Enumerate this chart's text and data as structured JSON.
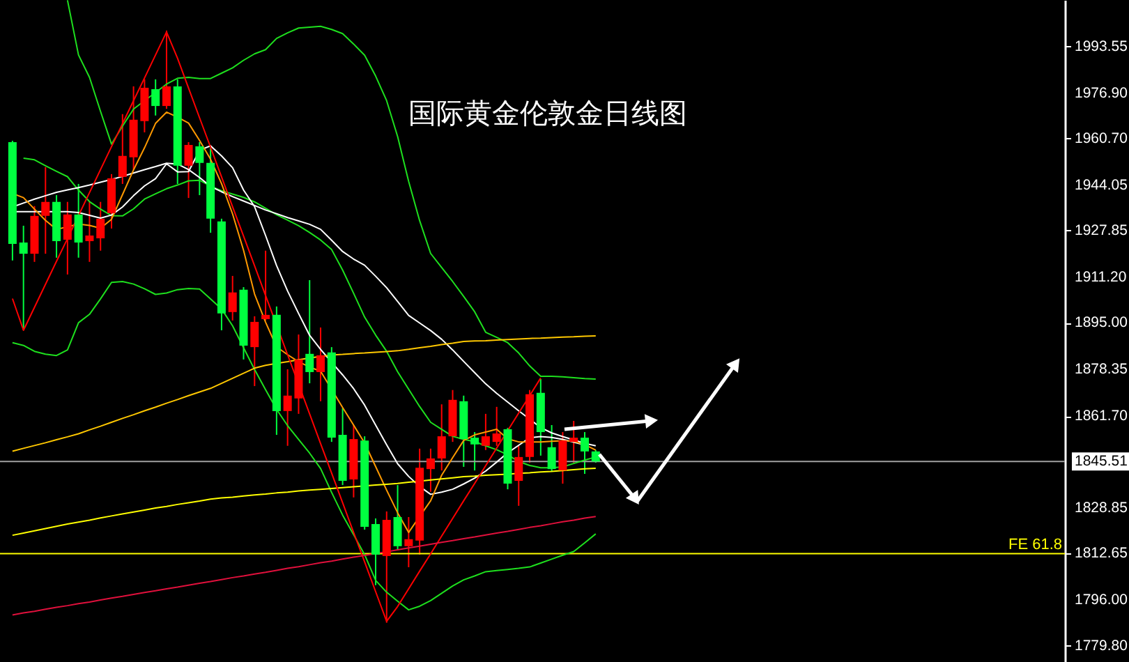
{
  "chart_data": {
    "type": "candlestick",
    "title": "国际黄金伦敦金日线图",
    "categories": [
      null,
      null,
      null,
      null,
      null,
      null,
      null,
      null,
      null,
      null,
      null,
      null,
      null,
      null,
      null,
      null,
      null,
      null,
      null,
      null,
      null,
      null,
      null,
      null,
      null,
      null,
      null,
      null,
      null,
      null,
      null,
      null,
      null,
      null,
      null,
      null,
      null,
      null,
      null,
      null,
      null,
      null,
      null,
      null,
      null,
      null,
      null,
      null,
      null,
      null,
      null,
      null,
      null,
      null
    ],
    "ohlc": [
      [
        1959.4,
        1959.9,
        1917.2,
        1923.1
      ],
      [
        1923.6,
        1929.6,
        1892.3,
        1919.6
      ],
      [
        1919.6,
        1936.6,
        1916.7,
        1933.1
      ],
      [
        1933.1,
        1950.5,
        1919.6,
        1938.1
      ],
      [
        1938.1,
        1940.5,
        1918.2,
        1924.1
      ],
      [
        1924.6,
        1938.1,
        1912.2,
        1933.6
      ],
      [
        1933.6,
        1944.5,
        1918.2,
        1923.6
      ],
      [
        1924.1,
        1938.1,
        1916.7,
        1926.1
      ],
      [
        1925.1,
        1938.1,
        1920.7,
        1932.1
      ],
      [
        1934.1,
        1948.0,
        1928.6,
        1946.5
      ],
      [
        1947.0,
        1969.4,
        1944.5,
        1954.5
      ],
      [
        1954.0,
        1979.3,
        1949.5,
        1967.4
      ],
      [
        1966.9,
        1981.8,
        1962.9,
        1978.8
      ],
      [
        1978.3,
        1981.8,
        1968.9,
        1972.3
      ],
      [
        1972.3,
        1999.2,
        1971.3,
        1979.3
      ],
      [
        1979.3,
        1981.8,
        1944.5,
        1951.0
      ],
      [
        1951.0,
        1959.4,
        1939.5,
        1958.4
      ],
      [
        1957.9,
        1959.4,
        1940.5,
        1952.0
      ],
      [
        1952.0,
        1957.4,
        1927.1,
        1932.1
      ],
      [
        1931.1,
        1932.1,
        1892.3,
        1898.3
      ],
      [
        1898.8,
        1911.7,
        1895.8,
        1905.8
      ],
      [
        1906.8,
        1907.7,
        1881.9,
        1886.8
      ],
      [
        1886.3,
        1897.3,
        1872.4,
        1895.3
      ],
      [
        1896.3,
        1920.7,
        1895.8,
        1897.8
      ],
      [
        1897.8,
        1900.8,
        1855.0,
        1863.5
      ],
      [
        1863.5,
        1878.4,
        1851.1,
        1869.0
      ],
      [
        1868.0,
        1890.8,
        1862.5,
        1881.9
      ],
      [
        1883.9,
        1910.2,
        1873.4,
        1877.4
      ],
      [
        1877.4,
        1893.3,
        1867.0,
        1883.4
      ],
      [
        1884.4,
        1886.3,
        1852.5,
        1854.0
      ],
      [
        1855.0,
        1864.5,
        1837.1,
        1838.6
      ],
      [
        1839.1,
        1858.5,
        1832.7,
        1853.5
      ],
      [
        1853.0,
        1854.5,
        1821.2,
        1822.2
      ],
      [
        1823.2,
        1825.2,
        1801.4,
        1812.3
      ],
      [
        1811.8,
        1827.7,
        1788.0,
        1824.7
      ],
      [
        1825.7,
        1837.1,
        1813.8,
        1815.3
      ],
      [
        1815.3,
        1825.7,
        1807.8,
        1817.8
      ],
      [
        1817.3,
        1850.1,
        1812.3,
        1843.3
      ],
      [
        1842.8,
        1850.1,
        1834.7,
        1846.6
      ],
      [
        1846.6,
        1865.9,
        1842.3,
        1854.5
      ],
      [
        1854.5,
        1871.0,
        1852.5,
        1867.5
      ],
      [
        1867.0,
        1869.0,
        1843.6,
        1853.5
      ],
      [
        1854.0,
        1856.0,
        1842.3,
        1851.6
      ],
      [
        1851.1,
        1862.5,
        1849.6,
        1854.5
      ],
      [
        1852.5,
        1865.0,
        1851.1,
        1855.5
      ],
      [
        1857.0,
        1857.5,
        1835.6,
        1837.6
      ],
      [
        1838.6,
        1851.1,
        1829.7,
        1847.1
      ],
      [
        1847.1,
        1871.0,
        1845.1,
        1869.5
      ],
      [
        1870.0,
        1874.9,
        1847.6,
        1856.0
      ],
      [
        1850.6,
        1858.5,
        1842.1,
        1842.8
      ],
      [
        1842.3,
        1856.0,
        1837.6,
        1853.0
      ],
      [
        1852.5,
        1860.0,
        1845.1,
        1854.0
      ],
      [
        1854.0,
        1856.0,
        1841.1,
        1849.1
      ],
      [
        1849.1,
        1849.6,
        1845.1,
        1845.5
      ]
    ],
    "colors": [
      "#00ff40",
      "#00ff40",
      "#ff0000",
      "#ff0000",
      "#00ff40",
      "#ff0000",
      "#00ff40",
      "#ff0000",
      "#ff0000",
      "#ff0000",
      "#ff0000",
      "#ff0000",
      "#ff0000",
      "#00ff40",
      "#ff0000",
      "#00ff40",
      "#ff0000",
      "#00ff40",
      "#00ff40",
      "#00ff40",
      "#ff0000",
      "#00ff40",
      "#ff0000",
      "#ff0000",
      "#00ff40",
      "#ff0000",
      "#ff0000",
      "#00ff40",
      "#ff0000",
      "#00ff40",
      "#00ff40",
      "#ff0000",
      "#00ff40",
      "#00ff40",
      "#ff0000",
      "#00ff40",
      "#ff0000",
      "#ff0000",
      "#ff0000",
      "#ff0000",
      "#ff0000",
      "#00ff40",
      "#00ff40",
      "#ff0000",
      "#ff0000",
      "#00ff40",
      "#ff0000",
      "#ff0000",
      "#00ff40",
      "#00ff40",
      "#ff0000",
      "#ff0000",
      "#00ff40",
      "#00ff40"
    ],
    "series": [
      {
        "type": "line",
        "color": "#1ee01e",
        "values": [
          null,
          null,
          null,
          null,
          null,
          2010.0,
          1990.5,
          1982.5,
          1970.4,
          1958.7,
          1965.1,
          1971.2,
          1974.2,
          1977.1,
          1980.1,
          1982.2,
          1982.5,
          1982.1,
          1982.1,
          1984.0,
          1985.9,
          1988.6,
          1990.9,
          1992.4,
          1996.4,
          1998.4,
          2000.1,
          2000.4,
          2000.7,
          1999.6,
          1998.1,
          1994.4,
          1990.4,
          1983.0,
          1974.2,
          1961.4,
          1945.4,
          1931.4,
          1919.7,
          1914.7,
          1909.7,
          1904.4,
          1898.9,
          1891.6,
          1889.8,
          1887.9,
          1884.2,
          1879.6,
          1875.9,
          1875.9,
          1875.7,
          1875.4,
          1875.1,
          1874.9
        ]
      },
      {
        "type": "line",
        "color": "#1ee01e",
        "values": [
          null,
          1953.7,
          1953.1,
          1951.0,
          1949.0,
          1947.1,
          1942.3,
          1938.2,
          1935.5,
          1933.2,
          1933.1,
          1935.6,
          1939.1,
          1941.0,
          1942.8,
          1944.1,
          1945.6,
          1945.8,
          1943.7,
          1942.1,
          1940.9,
          1939.7,
          1938.1,
          1935.8,
          1933.5,
          1931.6,
          1929.6,
          1927.2,
          1924.5,
          1921.1,
          1913.8,
          1905.5,
          1897.0,
          1890.6,
          1884.8,
          1877.5,
          1871.3,
          1865.1,
          1859.5,
          1857.0,
          1854.5,
          1853.4,
          1852.6,
          1851.1,
          1849.7,
          1847.9,
          1845.5,
          1844.1,
          1843.3,
          1843.3,
          1843.6,
          1844.8,
          1846.0,
          1847.1
        ]
      },
      {
        "type": "line",
        "color": "#1ee01e",
        "values": [
          1887.9,
          1886.9,
          1884.8,
          1883.8,
          1883.3,
          1885.3,
          1895.0,
          1898.0,
          1903.5,
          1909.4,
          1909.7,
          1908.8,
          1907.1,
          1905.1,
          1905.6,
          1906.8,
          1907.2,
          1907.0,
          1903.5,
          1899.9,
          1893.9,
          1886.1,
          1878.3,
          1871.1,
          1864.1,
          1858.3,
          1853.4,
          1848.5,
          1843.0,
          1834.5,
          1826.4,
          1819.4,
          1812.3,
          1803.1,
          1798.9,
          1795.7,
          1792.6,
          1793.9,
          1795.9,
          1798.5,
          1801.1,
          1803.3,
          1804.7,
          1806.2,
          1806.6,
          1807.0,
          1807.4,
          1807.9,
          1809.3,
          1810.7,
          1812.1,
          1813.4,
          1816.5,
          1819.7
        ]
      },
      {
        "type": "line",
        "color": "#ffffff",
        "values": [
          1936.3,
          1937.7,
          1939.1,
          1940.3,
          1941.5,
          1942.4,
          1943.2,
          1944.1,
          1945.1,
          1946.1,
          1947.2,
          1948.4,
          1949.6,
          1950.7,
          1951.9,
          1951.6,
          1949.6,
          1946.8,
          1943.6,
          1941.7,
          1940.0,
          1938.4,
          1936.8,
          1935.2,
          1933.9,
          1932.5,
          1931.3,
          1930.1,
          1928.3,
          1924.4,
          1920.4,
          1917.7,
          1915.5,
          1911.6,
          1907.5,
          1902.6,
          1897.6,
          1894.9,
          1892.2,
          1889.1,
          1885.3,
          1881.2,
          1877.2,
          1873.2,
          1869.8,
          1866.7,
          1863.6,
          1860.6,
          1857.6,
          1855.7,
          1854.4,
          1853.2,
          1852.0,
          1851.1
        ]
      },
      {
        "type": "line",
        "color": "#ffffff",
        "values": [
          1934.6,
          1934.6,
          1934.6,
          1934.6,
          1934.6,
          1934.6,
          1934.3,
          1933.3,
          1932.3,
          1933.4,
          1936.3,
          1940.3,
          1943.8,
          1946.4,
          1951.7,
          1948.8,
          1948.9,
          1956.5,
          1958.1,
          1954.5,
          1950.3,
          1942.3,
          1936.4,
          1926.1,
          1915.4,
          1906.3,
          1898.3,
          1890.5,
          1885.5,
          1880.9,
          1876.4,
          1871.5,
          1865.6,
          1858.5,
          1851.5,
          1844.7,
          1840.2,
          1836.6,
          1833.8,
          1834.6,
          1835.6,
          1837.5,
          1839.6,
          1842.1,
          1845.3,
          1848.6,
          1851.3,
          1854.0,
          1854.4,
          1854.1,
          1853.4,
          1852.4,
          1851.4,
          null
        ]
      },
      {
        "type": "line",
        "color": "#ff9900",
        "values": [
          1941.1,
          1939.6,
          1935.5,
          1931.5,
          1928.3,
          1929.2,
          1930.2,
          1929.7,
          1928.7,
          1931.9,
          1940.7,
          1949.5,
          1957.4,
          1966.1,
          1970.1,
          1968.3,
          1966.2,
          1960.0,
          1953.3,
          1944.6,
          1933.8,
          1920.8,
          1905.2,
          1895.2,
          1886.4,
          1883.6,
          1881.1,
          1879.2,
          1877.7,
          null,
          1864.8,
          1858.5,
          1852.1,
          1843.7,
          1835.3,
          1827.2,
          1820.2,
          1825.9,
          1831.5,
          1840.6,
          1846.9,
          1853.0,
          1855.0,
          1856.0,
          1857.0,
          1853.6,
          1852.5,
          1852.5,
          1852.5,
          1852.7,
          1852.9,
          1852.7,
          1851.5,
          1849.6
        ]
      },
      {
        "type": "line",
        "color": "#ffc800",
        "values": [
          1849.2,
          1850.2,
          1851.2,
          1852.2,
          1853.3,
          1854.3,
          1855.4,
          1856.8,
          1858.1,
          1859.5,
          1860.9,
          1862.2,
          1863.6,
          1864.9,
          1866.3,
          1867.6,
          1869.0,
          1870.3,
          1871.6,
          1873.4,
          1875.2,
          1877.0,
          1878.8,
          1879.8,
          1880.5,
          1881.1,
          1881.8,
          1882.4,
          1883.0,
          1883.5,
          1883.7,
          1884.0,
          1884.2,
          1884.5,
          1884.7,
          1885.0,
          1885.5,
          1886.1,
          1886.6,
          1887.2,
          1887.7,
          1888.3,
          1888.5,
          1888.6,
          1888.8,
          1889.0,
          1889.2,
          1889.4,
          1889.5,
          1889.7,
          1889.9,
          1890.0,
          1890.2,
          1890.3
        ]
      },
      {
        "type": "line",
        "color": "#ffff00",
        "values": [
          1819.2,
          1820.0,
          1820.8,
          1821.6,
          1822.4,
          1823.2,
          1823.9,
          1824.6,
          1825.4,
          1826.1,
          1826.8,
          1827.5,
          1828.2,
          1828.9,
          1829.5,
          1830.2,
          1830.8,
          1831.4,
          1832.1,
          1832.5,
          1832.8,
          1833.2,
          1833.6,
          1833.9,
          1834.3,
          1834.6,
          1835.0,
          1835.3,
          1835.6,
          1835.9,
          1836.2,
          1836.5,
          1836.8,
          1837.1,
          1837.4,
          1837.7,
          1838.1,
          1838.5,
          1838.9,
          1839.3,
          1839.7,
          1840.1,
          1840.3,
          1840.6,
          1840.8,
          1841.0,
          1841.3,
          1841.5,
          1841.8,
          1842.0,
          1842.3,
          1842.6,
          1842.9,
          1843.1
        ]
      },
      {
        "type": "line",
        "color": "#ff0000",
        "values": [
          1903.6,
          1892.3,
          1900.5,
          1908.7,
          1916.9,
          1925.0,
          1933.2,
          1941.4,
          1949.6,
          1957.8,
          1966.0,
          1974.2,
          1982.3,
          1990.5,
          1998.7,
          1989.3,
          1978.7,
          1968.1,
          1957.6,
          1947.0,
          1936.4,
          1925.9,
          1915.3,
          1904.7,
          null,
          1883.6,
          1873.1,
          1862.5,
          1851.9,
          1841.4,
          1830.8,
          1820.2,
          1809.7,
          1799.1,
          1788.5,
          1793.8,
          1800.1,
          1806.4,
          1812.6,
          1818.9,
          1825.2,
          1831.5,
          1837.7,
          1844.0,
          1850.3,
          1856.5,
          1862.8,
          1869.0,
          1875.3,
          null,
          null,
          null,
          null,
          null
        ]
      },
      {
        "type": "line",
        "color": "#e0103c",
        "values": [
          1790.8,
          1791.5,
          1792.1,
          1792.8,
          1793.5,
          1794.1,
          1794.8,
          1795.4,
          1796.1,
          1796.8,
          1797.4,
          1798.1,
          1798.8,
          1799.4,
          1800.1,
          1800.7,
          1801.4,
          1802.1,
          1802.7,
          1803.4,
          1804.1,
          1804.7,
          1805.4,
          1806.0,
          1806.7,
          1807.4,
          1808.0,
          1808.7,
          1809.4,
          1810.0,
          1810.7,
          1811.4,
          1812.0,
          1812.7,
          1813.3,
          1814.0,
          1814.7,
          1815.3,
          1816.0,
          1816.7,
          1817.3,
          1818.0,
          1818.6,
          1819.3,
          1820.0,
          1820.6,
          1821.3,
          1822.0,
          1822.6,
          1823.3,
          1824.0,
          1824.6,
          1825.3,
          1825.9
        ]
      }
    ],
    "ylim": [
      1774.0,
      2010.1
    ],
    "yticks": [
      {
        "value": 1779.8,
        "label": "1779.80"
      },
      {
        "value": 1796,
        "label": "1796.00"
      },
      {
        "value": 1812.65,
        "label": "1812.65"
      },
      {
        "value": 1828.85,
        "label": "1828.85"
      },
      {
        "value": 1861.7,
        "label": "1861.70"
      },
      {
        "value": 1878.35,
        "label": "1878.35"
      },
      {
        "value": 1895,
        "label": "1895.00"
      },
      {
        "value": 1911.2,
        "label": "1911.20"
      },
      {
        "value": 1927.85,
        "label": "1927.85"
      },
      {
        "value": 1944.05,
        "label": "1944.05"
      },
      {
        "value": 1960.7,
        "label": "1960.70"
      },
      {
        "value": 1976.9,
        "label": "1976.90"
      },
      {
        "value": 1993.55,
        "label": "1993.55"
      }
    ],
    "ref_lines": [
      {
        "axis": "y",
        "value": 1845.51,
        "label": "1845.51",
        "color": "#a0a0a0"
      },
      {
        "axis": "y",
        "value": 1812.65,
        "label": "FE 61.8",
        "color": "#ffff00"
      }
    ],
    "tick_labels": "y"
  }
}
